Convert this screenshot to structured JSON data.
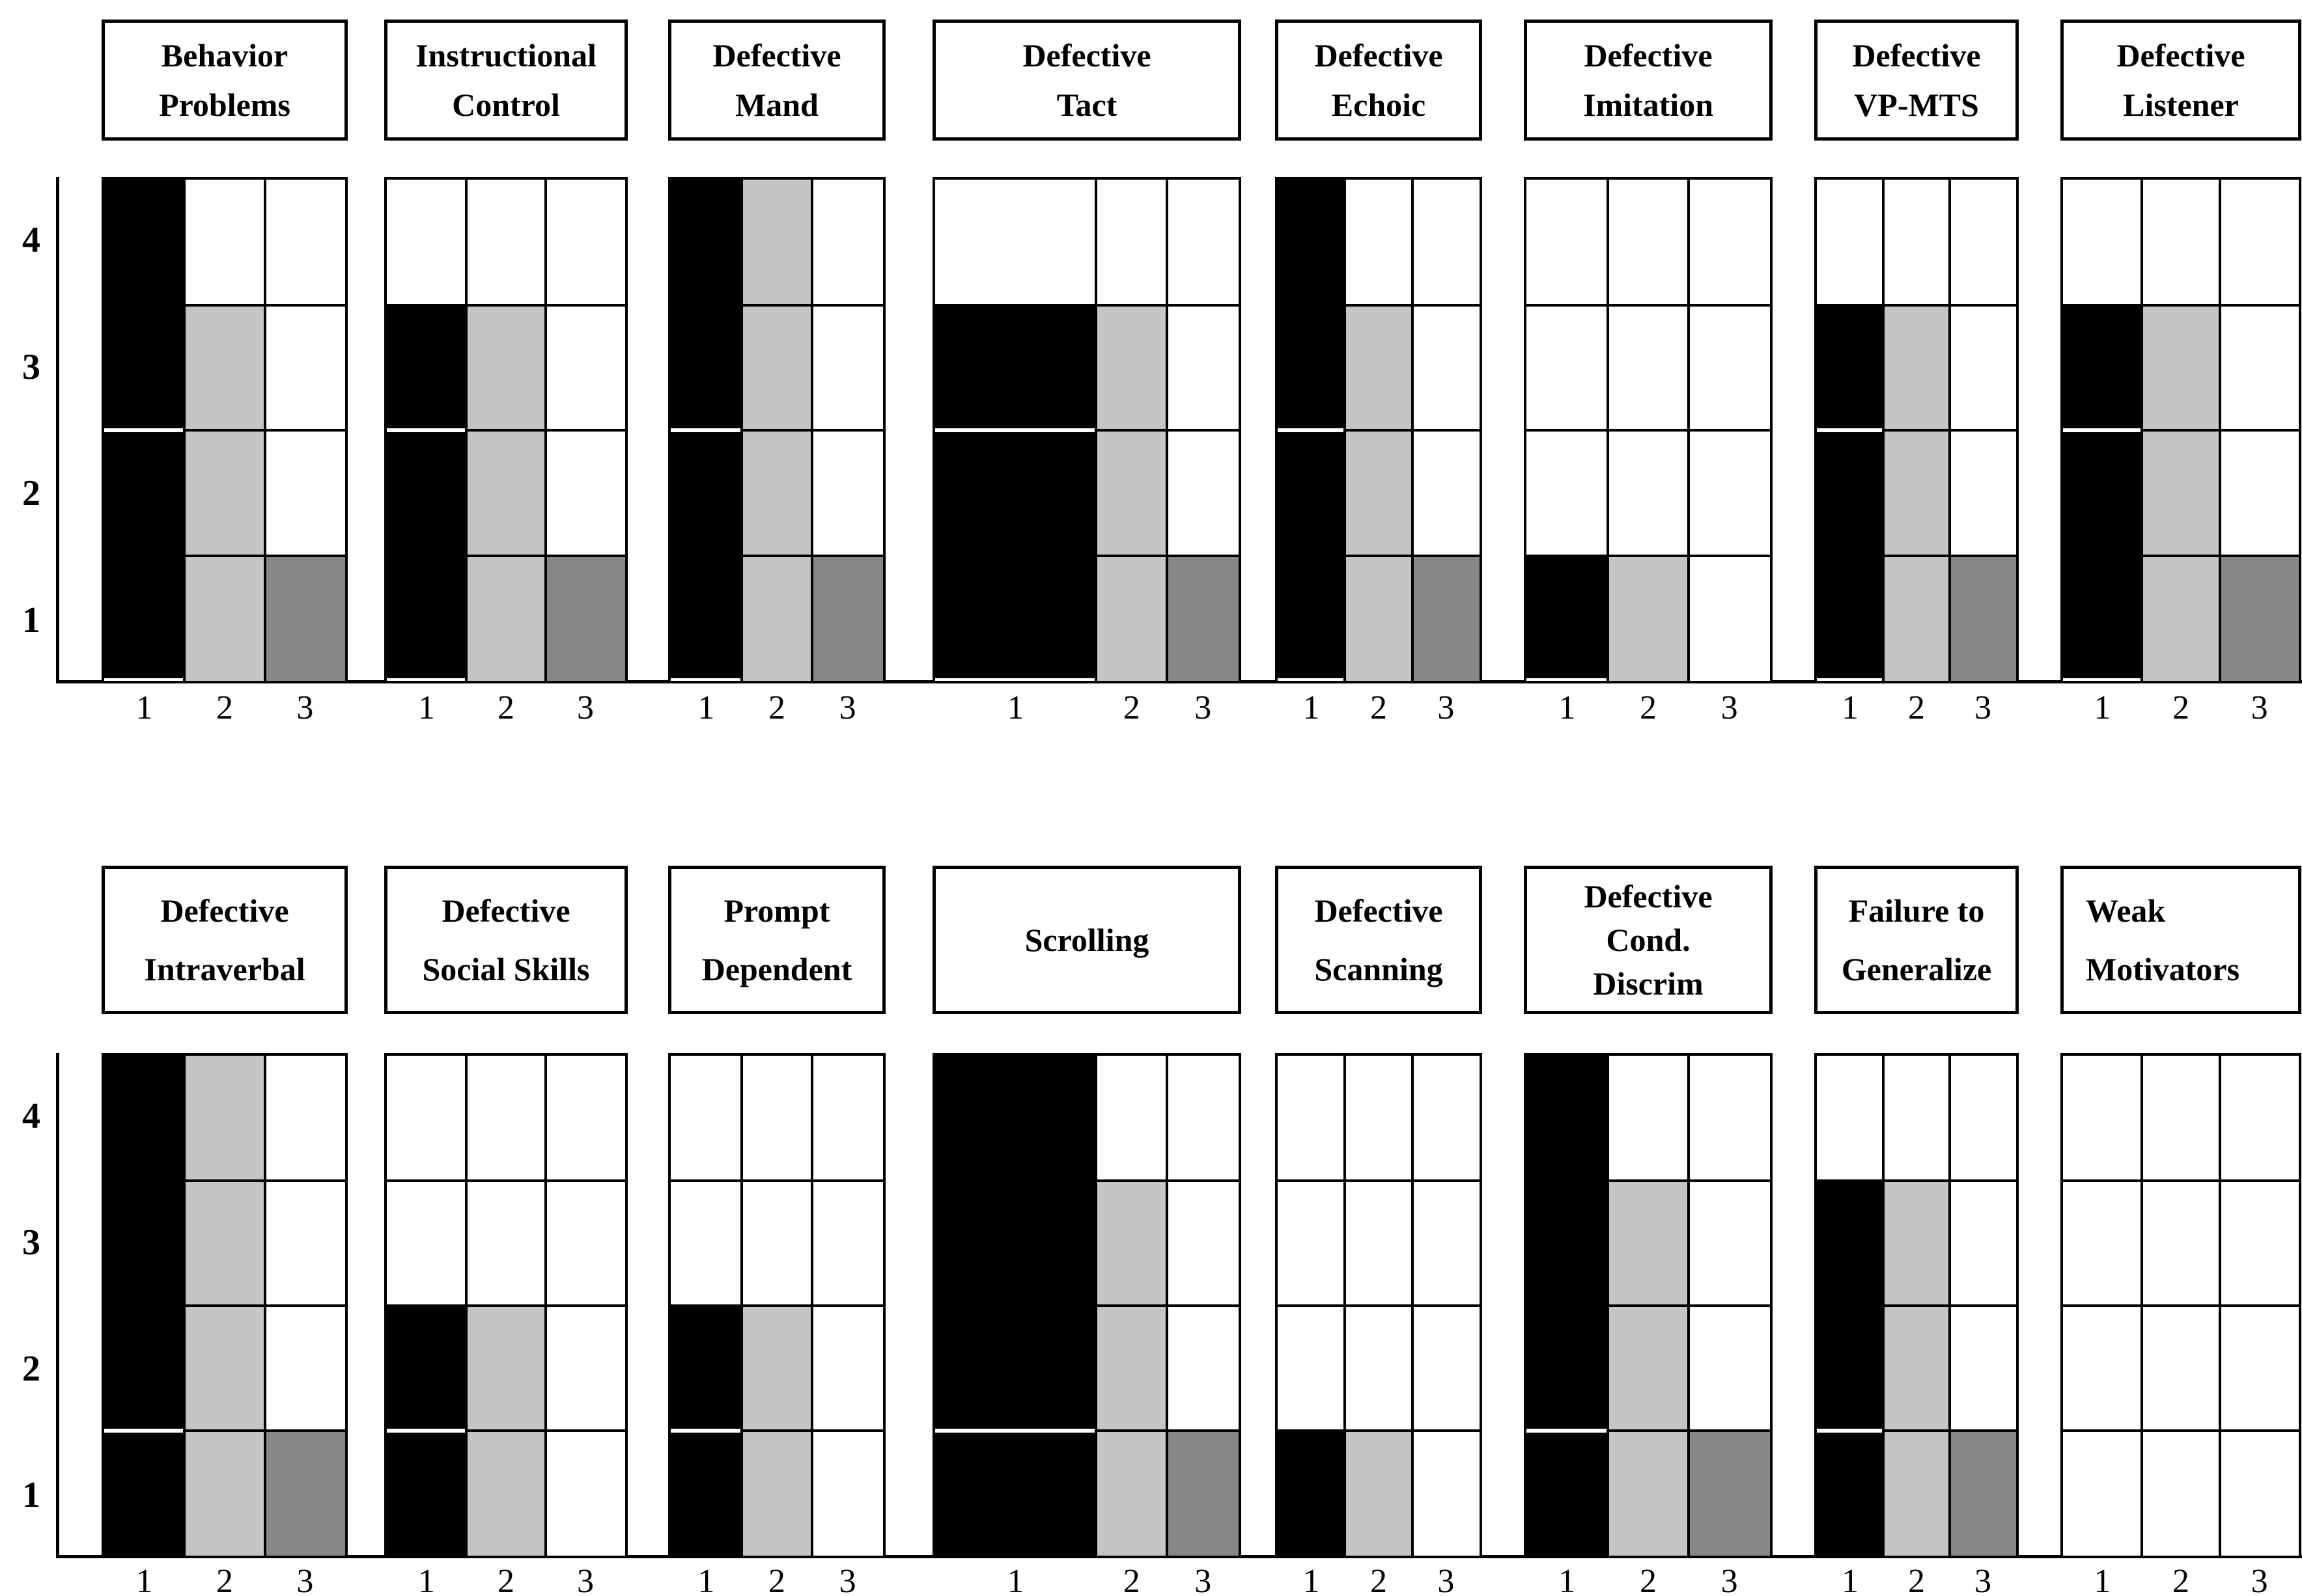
{
  "figure": {
    "background": "#ffffff",
    "grid_color": "#000000",
    "divider_line_color": "#ffffff"
  },
  "chart_data": {
    "type": "bar",
    "layout": "16 small-multiple panels in 2 rows; each panel is a 3-column by 4-row grid; bars fill cells from the bottom",
    "y_axis": {
      "ticks": [
        "4",
        "3",
        "2",
        "1"
      ],
      "range": [
        0,
        4
      ],
      "grid": true
    },
    "x_axis": {
      "ticks": [
        "1",
        "2",
        "3"
      ]
    },
    "series_colors": {
      "assessment_1_black": "#000000",
      "assessment_2_lightgray": "#c5c5c5",
      "assessment_3_darkgray": "#878787"
    },
    "rows": [
      {
        "black_bar_bottom_gap": true,
        "panels": [
          {
            "title_lines": [
              "Behavior",
              "Problems"
            ],
            "values": [
              4,
              3,
              1
            ],
            "divider_level": 2,
            "wide_first_column": false
          },
          {
            "title_lines": [
              "Instructional",
              "Control"
            ],
            "values": [
              3,
              3,
              1
            ],
            "divider_level": 2,
            "wide_first_column": false
          },
          {
            "title_lines": [
              "Defective",
              "Mand"
            ],
            "values": [
              4,
              4,
              1
            ],
            "divider_level": 2,
            "wide_first_column": false
          },
          {
            "title_lines": [
              "Defective",
              "Tact"
            ],
            "values": [
              3,
              3,
              1
            ],
            "divider_level": 2,
            "wide_first_column": true
          },
          {
            "title_lines": [
              "Defective",
              "Echoic"
            ],
            "values": [
              4,
              3,
              1
            ],
            "divider_level": 2,
            "wide_first_column": false
          },
          {
            "title_lines": [
              "Defective",
              "Imitation"
            ],
            "values": [
              1,
              1,
              0
            ],
            "divider_level": 2,
            "wide_first_column": false
          },
          {
            "title_lines": [
              "Defective",
              "VP-MTS"
            ],
            "values": [
              3,
              3,
              1
            ],
            "divider_level": 2,
            "wide_first_column": false
          },
          {
            "title_lines": [
              "Defective",
              "Listener"
            ],
            "values": [
              3,
              3,
              1
            ],
            "divider_level": 2,
            "wide_first_column": false
          }
        ]
      },
      {
        "black_bar_bottom_gap": false,
        "panels": [
          {
            "title_lines": [
              "Defective",
              "Intraverbal"
            ],
            "values": [
              4,
              4,
              1
            ],
            "divider_level": 1,
            "wide_first_column": false
          },
          {
            "title_lines": [
              "Defective",
              "Social Skills"
            ],
            "values": [
              2,
              2,
              0
            ],
            "divider_level": 1,
            "wide_first_column": false
          },
          {
            "title_lines": [
              "Prompt",
              "Dependent"
            ],
            "values": [
              2,
              2,
              0
            ],
            "divider_level": 1,
            "wide_first_column": false
          },
          {
            "title_lines": [
              "Scrolling"
            ],
            "values": [
              4,
              3,
              1
            ],
            "divider_level": 1,
            "wide_first_column": true
          },
          {
            "title_lines": [
              "Defective",
              "Scanning"
            ],
            "values": [
              1,
              1,
              0
            ],
            "divider_level": 1,
            "wide_first_column": false
          },
          {
            "title_lines": [
              "Defective",
              "Cond.",
              "Discrim"
            ],
            "values": [
              4,
              3,
              1
            ],
            "divider_level": 1,
            "wide_first_column": false
          },
          {
            "title_lines": [
              "Failure to",
              "Generalize"
            ],
            "values": [
              3,
              3,
              1
            ],
            "divider_level": 1,
            "wide_first_column": false
          },
          {
            "title_lines": [
              "Weak",
              "Motivators"
            ],
            "values": [
              0,
              0,
              0
            ],
            "divider_level": 1,
            "wide_first_column": false,
            "title_align": "left"
          }
        ]
      }
    ]
  }
}
